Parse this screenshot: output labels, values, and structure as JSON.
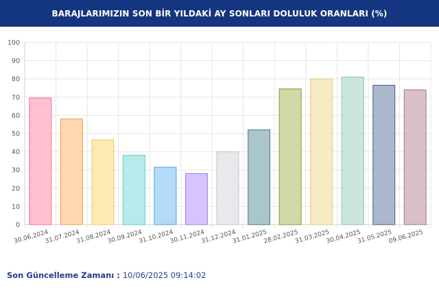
{
  "header": {
    "title": "BARAJLARIMIZIN SON BİR YILDAKİ AY SONLARI DOLULUK ORANLARI (%)"
  },
  "footer": {
    "label": "Son Güncelleme Zamanı :",
    "value": "10/06/2025 09:14:02"
  },
  "chart_data": {
    "type": "bar",
    "title": "BARAJLARIMIZIN SON BİR YILDAKİ AY SONLARI DOLULUK ORANLARI (%)",
    "xlabel": "",
    "ylabel": "",
    "ylim": [
      0,
      100
    ],
    "yticks": [
      0,
      10,
      20,
      30,
      40,
      50,
      60,
      70,
      80,
      90,
      100
    ],
    "grid": true,
    "categories": [
      "30.06.2024",
      "31.07.2024",
      "31.08.2024",
      "30.09.2024",
      "31.10.2024",
      "30.11.2024",
      "31.12.2024",
      "31.01.2025",
      "28.02.2025",
      "31.03.2025",
      "30.04.2025",
      "31.05.2025",
      "09.06.2025"
    ],
    "values": [
      69.5,
      58,
      46.5,
      38,
      31.5,
      28,
      40,
      52,
      74.5,
      80,
      81,
      76.5,
      74
    ],
    "colors": [
      "#ffc0d0",
      "#ffd7ae",
      "#fee9b4",
      "#b5ebeb",
      "#b3daf8",
      "#d7c4fd",
      "#e8e9ec",
      "#aac6cb",
      "#d3d8a8",
      "#f6ebc5",
      "#cbe6df",
      "#abb8cc",
      "#d9bfc6"
    ],
    "borders": [
      "#ff7a9c",
      "#f7a35c",
      "#f5cd6e",
      "#6fcfcf",
      "#62b1eb",
      "#a98af0",
      "#c9cbcf",
      "#5a8891",
      "#9aa050",
      "#e6cf85",
      "#8fc7b7",
      "#5b6f8f",
      "#ad8690"
    ]
  }
}
